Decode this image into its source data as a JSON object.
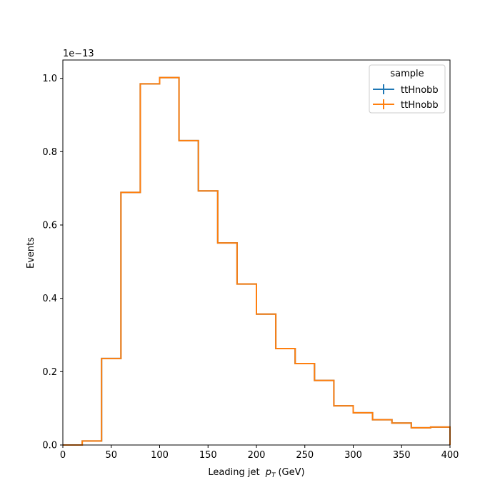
{
  "chart_data": {
    "type": "step-histogram",
    "xlabel": "Leading jet",
    "xlabel_symbol": "p",
    "xlabel_subscript": "T",
    "xlabel_unit": "(GeV)",
    "ylabel": "Events",
    "y_offset_label": "1e−13",
    "xlim": [
      0,
      400
    ],
    "ylim": [
      0,
      1.05
    ],
    "x_ticks": [
      0,
      50,
      100,
      150,
      200,
      250,
      300,
      350,
      400
    ],
    "y_ticks": [
      0.0,
      0.2,
      0.4,
      0.6,
      0.8,
      1.0
    ],
    "y_tick_labels": [
      "0.0",
      "0.2",
      "0.4",
      "0.6",
      "0.8",
      "1.0"
    ],
    "bin_edges": [
      0,
      20,
      40,
      60,
      80,
      100,
      120,
      140,
      160,
      180,
      200,
      220,
      240,
      260,
      280,
      300,
      320,
      340,
      360,
      380,
      400
    ],
    "legend": {
      "title": "sample",
      "placement": "top-right"
    },
    "series": [
      {
        "name": "ttHnobb",
        "color": "#1f77b4",
        "values": [
          0.0,
          0.011,
          0.236,
          0.689,
          0.985,
          1.002,
          0.83,
          0.693,
          0.551,
          0.439,
          0.357,
          0.263,
          0.222,
          0.176,
          0.107,
          0.088,
          0.069,
          0.06,
          0.047,
          0.049
        ]
      },
      {
        "name": "ttHnobb",
        "color": "#ff7f0e",
        "values": [
          0.0,
          0.011,
          0.236,
          0.689,
          0.985,
          1.002,
          0.83,
          0.693,
          0.551,
          0.439,
          0.357,
          0.263,
          0.222,
          0.176,
          0.107,
          0.088,
          0.069,
          0.06,
          0.047,
          0.049
        ]
      }
    ]
  }
}
